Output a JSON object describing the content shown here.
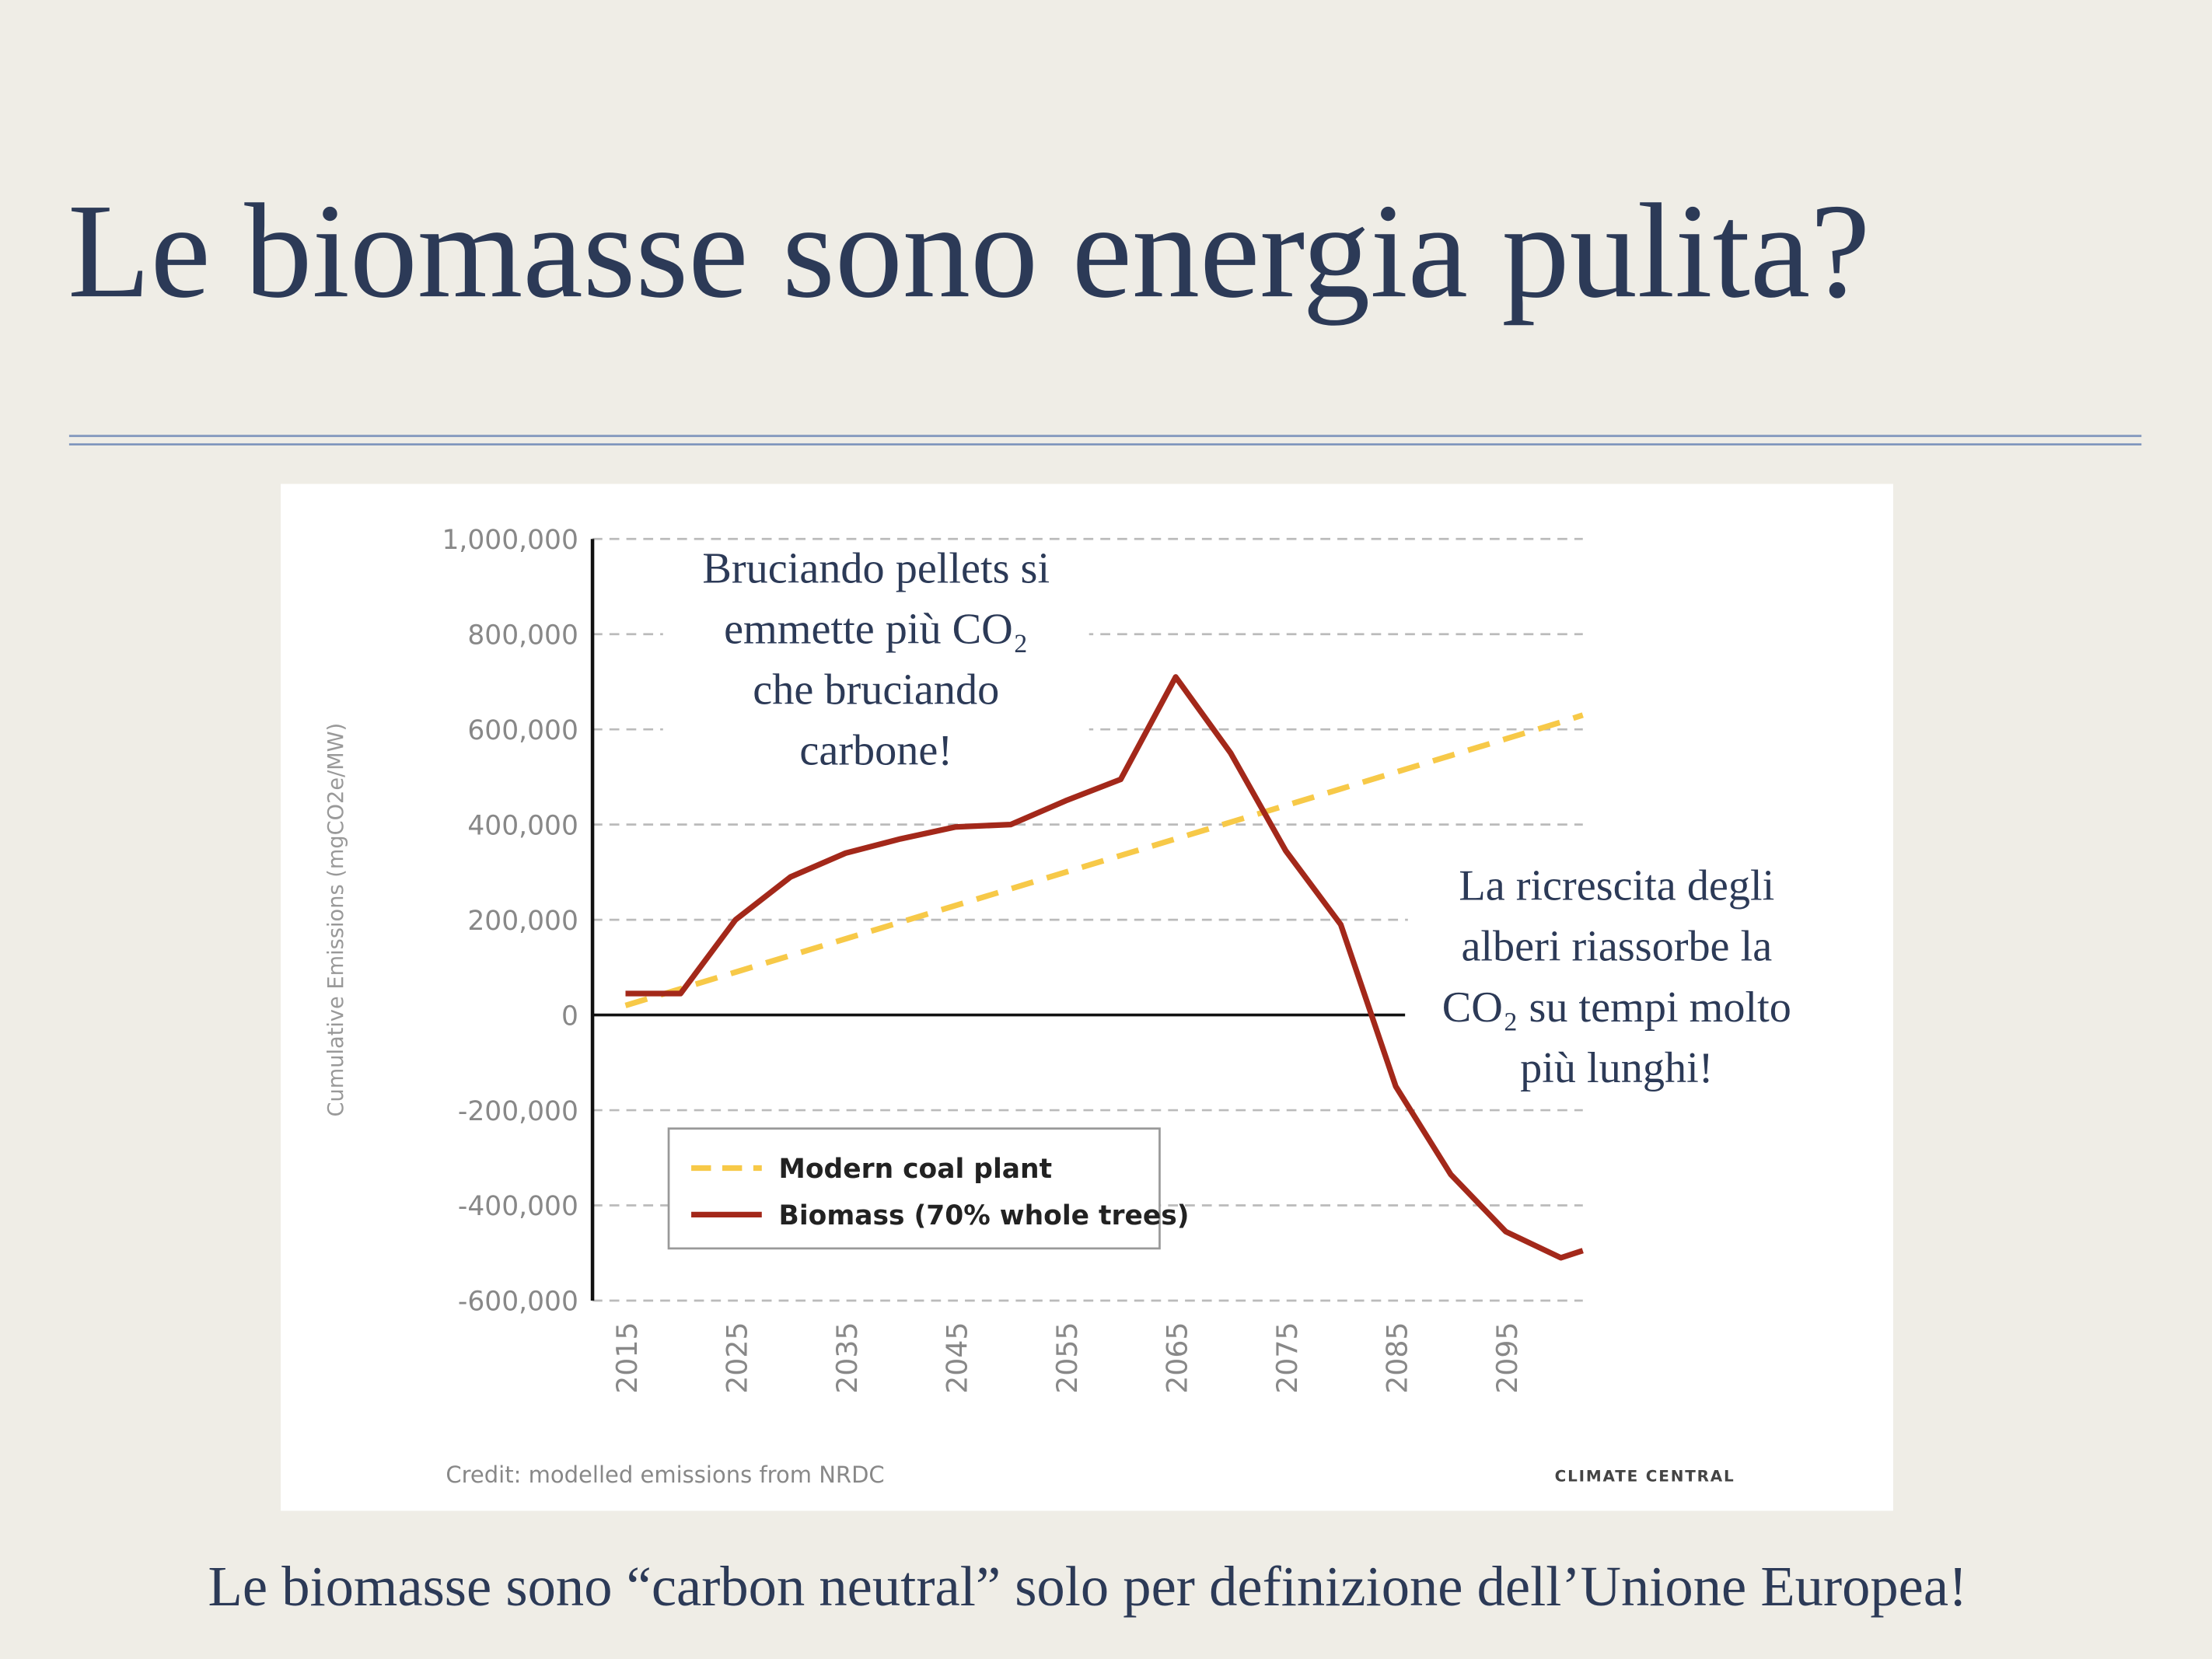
{
  "title": "Le biomasse sono energia pulita?",
  "footer": "Le biomasse sono “carbon neutral” solo per definizione dell’Unione Europea!",
  "chart_data": {
    "type": "line",
    "ylabel": "Cumulative Emissions (mgCO2e/MW)",
    "credit": "Credit: modelled emissions from NRDC",
    "logo": "CLIMATE CENTRAL",
    "annotations": [
      [
        "Bruciando pellets si",
        "emmette più CO₂",
        "che bruciando",
        "carbone!"
      ],
      [
        "La ricrescita degli",
        "alberi riassorbe la",
        "CO₂ su tempi molto",
        "più lunghi!"
      ]
    ],
    "x": [
      2015,
      2020,
      2025,
      2030,
      2035,
      2040,
      2045,
      2050,
      2055,
      2060,
      2065,
      2070,
      2075,
      2080,
      2085,
      2090,
      2095,
      2100,
      2102
    ],
    "series": [
      {
        "name": "Modern coal plant",
        "color": "#f7c948",
        "dashed": true,
        "values": [
          20000,
          55000,
          90000,
          125000,
          160000,
          195000,
          230000,
          265000,
          300000,
          335000,
          370000,
          405000,
          440000,
          475000,
          510000,
          545000,
          580000,
          615000,
          630000
        ]
      },
      {
        "name": "Biomass (70% whole trees)",
        "color": "#a3281a",
        "dashed": false,
        "values": [
          45000,
          45000,
          200000,
          290000,
          340000,
          370000,
          395000,
          400000,
          450000,
          495000,
          710000,
          550000,
          345000,
          190000,
          -150000,
          -335000,
          -455000,
          -510000,
          -495000
        ]
      }
    ],
    "xlim": [
      2012,
      2102
    ],
    "xticks": [
      2015,
      2025,
      2035,
      2045,
      2055,
      2065,
      2075,
      2085,
      2095
    ],
    "ylim": [
      -600000,
      1000000
    ],
    "yticks": [
      {
        "value": -600000,
        "label": "-600,000"
      },
      {
        "value": -400000,
        "label": "-400,000"
      },
      {
        "value": -200000,
        "label": "-200,000"
      },
      0,
      {
        "value": 200000,
        "label": "200,000"
      },
      {
        "value": 400000,
        "label": "400,000"
      },
      {
        "value": 600000,
        "label": "600,000"
      },
      {
        "value": 800000,
        "label": "800,000"
      },
      {
        "value": 1000000,
        "label": "1,000,000"
      }
    ],
    "grid": true
  }
}
